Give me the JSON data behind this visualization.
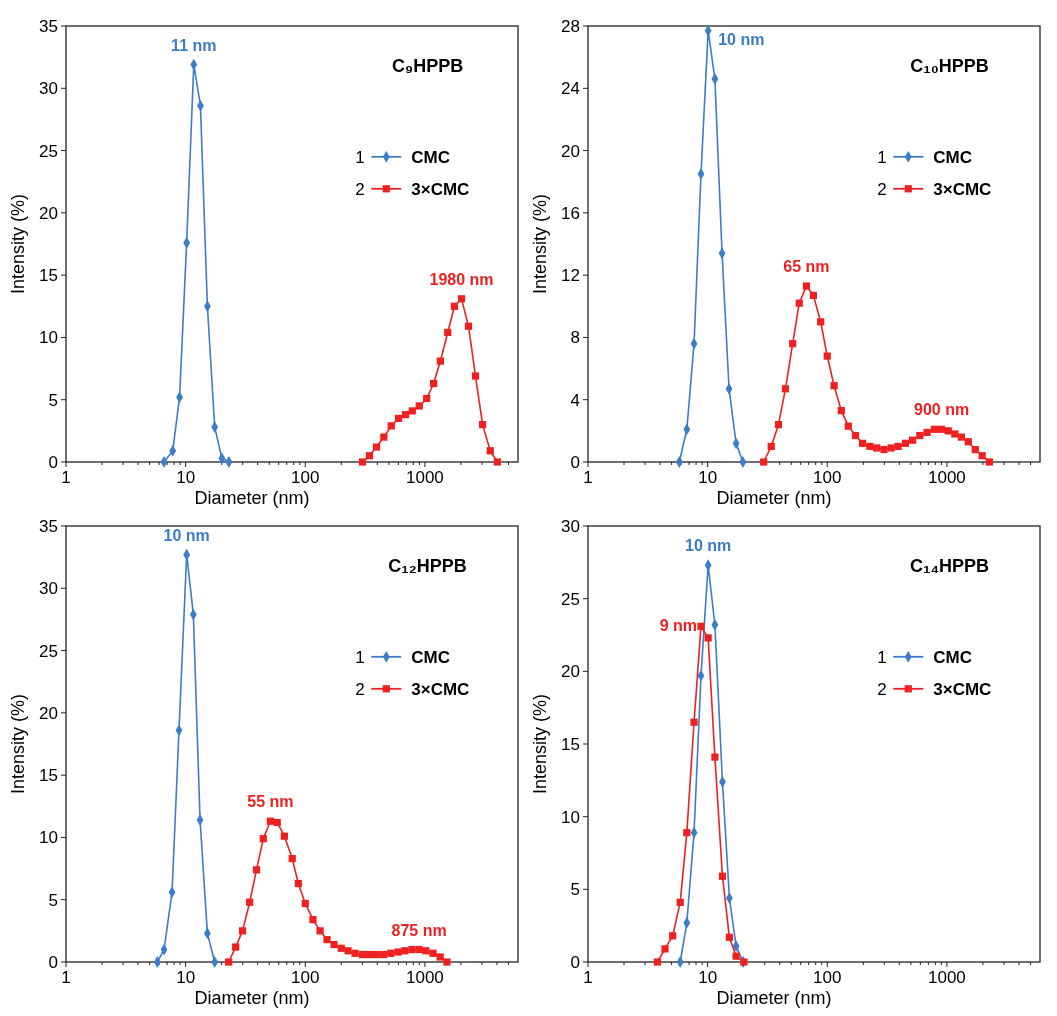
{
  "chart_data": [
    {
      "type": "line",
      "title": "C₉HPPB",
      "xlabel": "Diameter (nm)",
      "ylabel": "Intensity (%)",
      "log": "x",
      "xlim": [
        1,
        6000
      ],
      "ylim": [
        0,
        35
      ],
      "yticks": [
        0,
        5,
        10,
        15,
        20,
        25,
        30,
        35
      ],
      "xticks": [
        1,
        {
          "value": 2,
          "label": null
        },
        {
          "value": 3,
          "label": null
        },
        {
          "value": 4,
          "label": null
        },
        {
          "value": 5,
          "label": null
        },
        {
          "value": 6,
          "label": null
        },
        {
          "value": 7,
          "label": null
        },
        {
          "value": 8,
          "label": null
        },
        {
          "value": 9,
          "label": null
        },
        10,
        {
          "value": 20,
          "label": null
        },
        {
          "value": 30,
          "label": null
        },
        {
          "value": 40,
          "label": null
        },
        {
          "value": 50,
          "label": null
        },
        {
          "value": 60,
          "label": null
        },
        {
          "value": 70,
          "label": null
        },
        {
          "value": 80,
          "label": null
        },
        {
          "value": 90,
          "label": null
        },
        100,
        {
          "value": 200,
          "label": null
        },
        {
          "value": 300,
          "label": null
        },
        {
          "value": 400,
          "label": null
        },
        {
          "value": 500,
          "label": null
        },
        {
          "value": 600,
          "label": null
        },
        {
          "value": 700,
          "label": null
        },
        {
          "value": 800,
          "label": null
        },
        {
          "value": 900,
          "label": null
        },
        1000,
        {
          "value": 2000,
          "label": null
        },
        {
          "value": 3000,
          "label": null
        },
        {
          "value": 4000,
          "label": null
        },
        {
          "value": 5000,
          "label": null
        }
      ],
      "legend": "right",
      "grid": false,
      "series": [
        {
          "name": "CMC",
          "color": "#3d7cc9",
          "marker": "diamond",
          "x": [
            6.6,
            7.8,
            8.9,
            10.2,
            11.7,
            13.3,
            15.2,
            17.5,
            20.1,
            23
          ],
          "values": [
            0,
            0.9,
            5.2,
            17.6,
            31.9,
            28.6,
            12.5,
            2.8,
            0.3,
            0
          ]
        },
        {
          "name": "3×CMC",
          "color": "#ee2020",
          "marker": "square",
          "x": [
            301,
            344,
            394,
            454,
            523,
            602,
            689,
            784,
            897,
            1035,
            1183,
            1347,
            1552,
            1766,
            2023,
            2314,
            2648,
            3034,
            3516,
            4025
          ],
          "values": [
            0,
            0.5,
            1.2,
            2,
            2.9,
            3.5,
            3.8,
            4.1,
            4.5,
            5.1,
            6.3,
            8.1,
            10.4,
            12.5,
            13.1,
            10.9,
            6.9,
            3,
            0.9,
            0
          ]
        }
      ],
      "annotations": [
        {
          "text": "11 nm",
          "x": 11.7,
          "y": 31.9
        },
        {
          "text": "1980 nm",
          "x": 2023,
          "y": 13.1
        },
        "1",
        "2"
      ]
    },
    {
      "type": "line",
      "title": "C₁₀HPPB",
      "xlabel": "Diameter (nm)",
      "ylabel": "Intensity (%)",
      "log": "x",
      "xlim": [
        1,
        6000
      ],
      "ylim": [
        0,
        28
      ],
      "yticks": [
        0,
        4,
        8,
        12,
        16,
        20,
        24,
        28
      ],
      "xticks": [
        1,
        {
          "value": 2,
          "label": null
        },
        {
          "value": 3,
          "label": null
        },
        {
          "value": 4,
          "label": null
        },
        {
          "value": 5,
          "label": null
        },
        {
          "value": 6,
          "label": null
        },
        {
          "value": 7,
          "label": null
        },
        {
          "value": 8,
          "label": null
        },
        {
          "value": 9,
          "label": null
        },
        10,
        {
          "value": 20,
          "label": null
        },
        {
          "value": 30,
          "label": null
        },
        {
          "value": 40,
          "label": null
        },
        {
          "value": 50,
          "label": null
        },
        {
          "value": 60,
          "label": null
        },
        {
          "value": 70,
          "label": null
        },
        {
          "value": 80,
          "label": null
        },
        {
          "value": 90,
          "label": null
        },
        100,
        {
          "value": 200,
          "label": null
        },
        {
          "value": 300,
          "label": null
        },
        {
          "value": 400,
          "label": null
        },
        {
          "value": 500,
          "label": null
        },
        {
          "value": 600,
          "label": null
        },
        {
          "value": 700,
          "label": null
        },
        {
          "value": 800,
          "label": null
        },
        {
          "value": 900,
          "label": null
        },
        1000,
        {
          "value": 2000,
          "label": null
        },
        {
          "value": 3000,
          "label": null
        },
        {
          "value": 4000,
          "label": null
        },
        {
          "value": 5000,
          "label": null
        }
      ],
      "legend": "right",
      "grid": false,
      "series": [
        {
          "name": "CMC",
          "color": "#3d7cc9",
          "marker": "diamond",
          "x": [
            5.8,
            6.7,
            7.7,
            8.8,
            10.1,
            11.5,
            13.2,
            15.1,
            17.3,
            19.7
          ],
          "values": [
            0,
            2.1,
            7.6,
            18.5,
            27.7,
            24.6,
            13.4,
            4.7,
            1.2,
            0
          ]
        },
        {
          "name": "3×CMC",
          "color": "#ee2020",
          "marker": "square",
          "x": [
            29.4,
            34,
            39.1,
            44.7,
            51.4,
            58.3,
            67,
            76.6,
            88.1,
            100,
            114,
            131,
            150,
            172,
            197,
            227,
            259,
            298,
            342,
            391,
            450,
            517,
            594,
            683,
            786,
            903,
            1026,
            1165,
            1322,
            1510,
            1726,
            1972,
            2265
          ],
          "values": [
            0,
            1,
            2.4,
            4.7,
            7.6,
            10.2,
            11.3,
            10.7,
            9,
            6.8,
            4.9,
            3.3,
            2.3,
            1.7,
            1.2,
            1,
            0.9,
            0.8,
            0.9,
            1,
            1.2,
            1.4,
            1.7,
            1.9,
            2.1,
            2.1,
            2,
            1.8,
            1.6,
            1.3,
            0.8,
            0.4,
            0
          ]
        }
      ],
      "annotations": [
        {
          "text": "10 nm",
          "x": 10.1,
          "y": 27.7
        },
        {
          "text": "65 nm",
          "x": 67,
          "y": 11.3
        },
        {
          "text": "900 nm",
          "x": 903,
          "y": 2.1
        },
        "1",
        "2"
      ]
    },
    {
      "type": "line",
      "title": "C₁₂HPPB",
      "xlabel": "Diameter (nm)",
      "ylabel": "Intensity (%)",
      "log": "x",
      "xlim": [
        1,
        6000
      ],
      "ylim": [
        0,
        35
      ],
      "yticks": [
        0,
        5,
        10,
        15,
        20,
        25,
        30,
        35
      ],
      "xticks": [
        1,
        {
          "value": 2,
          "label": null
        },
        {
          "value": 3,
          "label": null
        },
        {
          "value": 4,
          "label": null
        },
        {
          "value": 5,
          "label": null
        },
        {
          "value": 6,
          "label": null
        },
        {
          "value": 7,
          "label": null
        },
        {
          "value": 8,
          "label": null
        },
        {
          "value": 9,
          "label": null
        },
        10,
        {
          "value": 20,
          "label": null
        },
        {
          "value": 30,
          "label": null
        },
        {
          "value": 40,
          "label": null
        },
        {
          "value": 50,
          "label": null
        },
        {
          "value": 60,
          "label": null
        },
        {
          "value": 70,
          "label": null
        },
        {
          "value": 80,
          "label": null
        },
        {
          "value": 90,
          "label": null
        },
        100,
        {
          "value": 200,
          "label": null
        },
        {
          "value": 300,
          "label": null
        },
        {
          "value": 400,
          "label": null
        },
        {
          "value": 500,
          "label": null
        },
        {
          "value": 600,
          "label": null
        },
        {
          "value": 700,
          "label": null
        },
        {
          "value": 800,
          "label": null
        },
        {
          "value": 900,
          "label": null
        },
        1000,
        {
          "value": 2000,
          "label": null
        },
        {
          "value": 3000,
          "label": null
        },
        {
          "value": 4000,
          "label": null
        },
        {
          "value": 5000,
          "label": null
        }
      ],
      "legend": "right",
      "grid": false,
      "series": [
        {
          "name": "CMC",
          "color": "#3d7cc9",
          "marker": "diamond",
          "x": [
            5.8,
            6.6,
            7.7,
            8.8,
            10.2,
            11.6,
            13.2,
            15.2,
            17.5
          ],
          "values": [
            0,
            1,
            5.6,
            18.6,
            32.7,
            27.9,
            11.4,
            2.3,
            0
          ]
        },
        {
          "name": "3×CMC",
          "color": "#ee2020",
          "marker": "square",
          "x": [
            22.9,
            26.2,
            29.9,
            34.3,
            39.1,
            44.6,
            51.1,
            58.3,
            66.9,
            77.8,
            87.5,
            100,
            116,
            133,
            152,
            174,
            200,
            228,
            261,
            300,
            344,
            394,
            453,
            519,
            596,
            679,
            779,
            894,
            1019,
            1169,
            1341,
            1528
          ],
          "values": [
            0,
            1.2,
            2.5,
            4.8,
            7.4,
            9.9,
            11.3,
            11.2,
            10.1,
            8.3,
            6.3,
            4.7,
            3.4,
            2.5,
            1.8,
            1.4,
            1.1,
            0.9,
            0.7,
            0.6,
            0.6,
            0.6,
            0.6,
            0.7,
            0.8,
            0.9,
            1,
            1,
            0.9,
            0.7,
            0.4,
            0
          ]
        }
      ],
      "annotations": [
        {
          "text": "10 nm",
          "x": 10.2,
          "y": 32.7
        },
        {
          "text": "55 nm",
          "x": 51.1,
          "y": 11.3
        },
        {
          "text": "875 nm",
          "x": 894,
          "y": 1
        },
        "1",
        "2"
      ]
    },
    {
      "type": "line",
      "title": "C₁₄HPPB",
      "xlabel": "Diameter (nm)",
      "ylabel": "Intensity (%)",
      "log": "x",
      "xlim": [
        1,
        6000
      ],
      "ylim": [
        0,
        30
      ],
      "yticks": [
        0,
        5,
        10,
        15,
        20,
        25,
        30
      ],
      "xticks": [
        1,
        {
          "value": 2,
          "label": null
        },
        {
          "value": 3,
          "label": null
        },
        {
          "value": 4,
          "label": null
        },
        {
          "value": 5,
          "label": null
        },
        {
          "value": 6,
          "label": null
        },
        {
          "value": 7,
          "label": null
        },
        {
          "value": 8,
          "label": null
        },
        {
          "value": 9,
          "label": null
        },
        10,
        {
          "value": 20,
          "label": null
        },
        {
          "value": 30,
          "label": null
        },
        {
          "value": 40,
          "label": null
        },
        {
          "value": 50,
          "label": null
        },
        {
          "value": 60,
          "label": null
        },
        {
          "value": 70,
          "label": null
        },
        {
          "value": 80,
          "label": null
        },
        {
          "value": 90,
          "label": null
        },
        100,
        {
          "value": 200,
          "label": null
        },
        {
          "value": 300,
          "label": null
        },
        {
          "value": 400,
          "label": null
        },
        {
          "value": 500,
          "label": null
        },
        {
          "value": 600,
          "label": null
        },
        {
          "value": 700,
          "label": null
        },
        {
          "value": 800,
          "label": null
        },
        {
          "value": 900,
          "label": null
        },
        1000,
        {
          "value": 2000,
          "label": null
        },
        {
          "value": 3000,
          "label": null
        },
        {
          "value": 4000,
          "label": null
        },
        {
          "value": 5000,
          "label": null
        }
      ],
      "legend": "right",
      "grid": false,
      "series": [
        {
          "name": "CMC",
          "color": "#3d7cc9",
          "marker": "diamond",
          "x": [
            5.9,
            6.7,
            7.7,
            8.8,
            10.1,
            11.5,
            13.3,
            15.2,
            17.3,
            19.8
          ],
          "values": [
            0,
            2.7,
            8.9,
            19.7,
            27.3,
            23.2,
            12.4,
            4.4,
            1.1,
            0
          ]
        },
        {
          "name": "3×CMC",
          "color": "#ee2020",
          "marker": "square",
          "x": [
            3.8,
            4.4,
            5.1,
            5.9,
            6.7,
            7.7,
            8.8,
            10.1,
            11.5,
            13.3,
            15.2,
            17.3,
            20.1
          ],
          "values": [
            0,
            0.9,
            1.8,
            4.1,
            8.9,
            16.5,
            23.1,
            22.3,
            14.1,
            5.9,
            1.7,
            0.4,
            0
          ]
        }
      ],
      "annotations": [
        {
          "text": "10 nm",
          "x": 10.1,
          "y": 27.3
        },
        {
          "text": "9 nm",
          "x": 8.8,
          "y": 23.1
        },
        "1",
        "2"
      ]
    }
  ]
}
